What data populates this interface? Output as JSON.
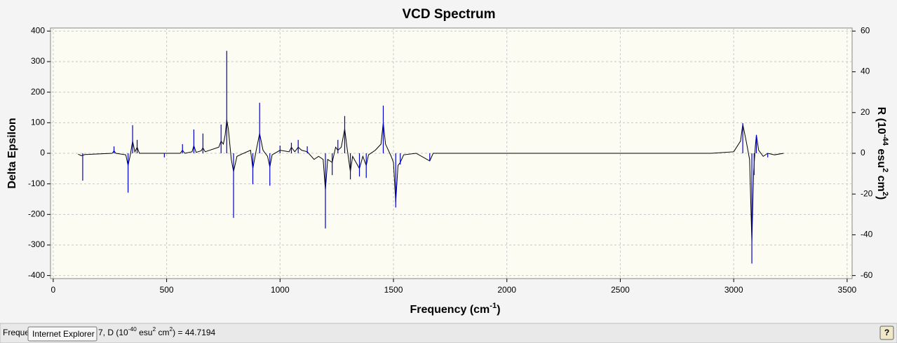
{
  "chart_data": {
    "type": "line",
    "title": "VCD Spectrum",
    "x_label": [
      "Frequency (cm",
      "-1",
      ")"
    ],
    "y_label": "Delta Epsilon",
    "y2_label": [
      "R (10",
      "-44",
      " esu",
      "2",
      " cm",
      "2",
      ")"
    ],
    "xlim": [
      -12,
      3522
    ],
    "xticks": [
      0,
      500,
      1000,
      1500,
      2000,
      2500,
      3000,
      3500
    ],
    "ylim": [
      -410,
      410
    ],
    "yticks": [
      -400,
      -300,
      -200,
      -100,
      0,
      100,
      200,
      300,
      400
    ],
    "y2lim": [
      -61.5,
      61.5
    ],
    "y2ticks": [
      -60,
      -40,
      -20,
      0,
      20,
      40,
      60
    ],
    "grid": true,
    "series": [
      {
        "color": "#000000",
        "style": "curve",
        "x": [
          110,
          125,
          140,
          260,
          268,
          276,
          320,
          330,
          340,
          350,
          360,
          370,
          380,
          560,
          570,
          580,
          612,
          620,
          630,
          652,
          660,
          670,
          730,
          740,
          750,
          758,
          765,
          772,
          785,
          795,
          810,
          830,
          870,
          880,
          895,
          910,
          925,
          945,
          955,
          965,
          1000,
          1040,
          1050,
          1065,
          1080,
          1095,
          1120,
          1150,
          1170,
          1190,
          1200,
          1210,
          1230,
          1245,
          1255,
          1270,
          1285,
          1295,
          1310,
          1320,
          1350,
          1365,
          1380,
          1390,
          1420,
          1445,
          1455,
          1465,
          1490,
          1500,
          1510,
          1520,
          1530,
          1545,
          1600,
          1660,
          1675,
          2900,
          3000,
          3030,
          3040,
          3055,
          3070,
          3080,
          3088,
          3095,
          3100,
          3110,
          3130,
          3150,
          3180,
          3220
        ],
        "values": [
          -3,
          -8,
          -4,
          0,
          8,
          0,
          -5,
          -40,
          -5,
          40,
          5,
          20,
          0,
          0,
          10,
          0,
          5,
          25,
          3,
          8,
          18,
          5,
          20,
          40,
          30,
          60,
          110,
          80,
          -20,
          -60,
          -10,
          -3,
          10,
          -50,
          10,
          65,
          10,
          -10,
          -45,
          -5,
          10,
          5,
          20,
          5,
          20,
          10,
          5,
          -20,
          -10,
          -20,
          -120,
          -20,
          -30,
          20,
          10,
          20,
          80,
          20,
          -60,
          -10,
          -50,
          -10,
          -40,
          -5,
          10,
          30,
          100,
          30,
          -10,
          -30,
          -160,
          -40,
          -30,
          -5,
          0,
          -25,
          0,
          0,
          5,
          40,
          95,
          40,
          -20,
          -290,
          -60,
          20,
          60,
          10,
          -10,
          0,
          -5,
          0
        ]
      },
      {
        "color": "#0000cc",
        "style": "stick",
        "axis": "y2",
        "x": [
          130,
          268,
          330,
          350,
          370,
          490,
          570,
          620,
          660,
          740,
          765,
          795,
          880,
          910,
          955,
          1000,
          1050,
          1080,
          1120,
          1200,
          1230,
          1255,
          1285,
          1310,
          1350,
          1380,
          1455,
          1510,
          1530,
          1660,
          3040,
          3080,
          3090,
          3100,
          3150
        ],
        "values": [
          -13.4,
          3.4,
          -19.3,
          13.8,
          6.6,
          -2,
          4.5,
          11.7,
          9.7,
          14.1,
          50.3,
          -31.7,
          -15.2,
          24.8,
          -15.9,
          3.8,
          5.2,
          6.6,
          3.4,
          -36.9,
          -10.7,
          6.6,
          18.3,
          -12.8,
          -11.4,
          -12.1,
          23.4,
          -26.6,
          -5.5,
          -3.8,
          14.8,
          -54.1,
          -10.7,
          9,
          -2
        ]
      }
    ]
  },
  "status_bar": {
    "prefix": "Freque",
    "tooltip": "Internet Explorer",
    "text": [
      "7, D (10",
      "-40",
      " esu",
      "2",
      " cm",
      "2",
      ") = 44.7194"
    ],
    "help": "?"
  }
}
